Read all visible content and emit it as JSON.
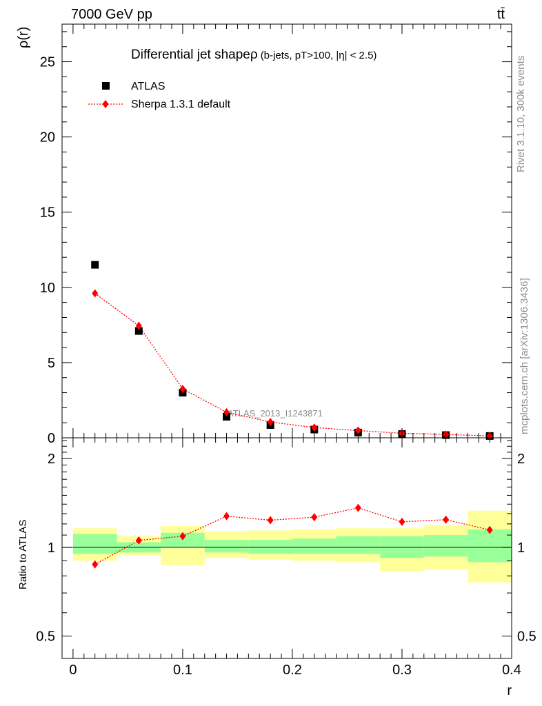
{
  "header": {
    "energy_label": "7000 GeV pp",
    "process_label": "tt̄"
  },
  "side_labels": {
    "rivet": "Rivet 3.1.10,  300k events",
    "mcplots": "mcplots.cern.ch [arXiv:1306.3436]"
  },
  "chart_data": [
    {
      "type": "scatter",
      "title": "Differential jet shapeρ",
      "subtitle": "(b-jets, pT>100, |η| < 2.5)",
      "xlabel": "",
      "ylabel": "ρ(r)",
      "xlim": [
        -0.01,
        0.4
      ],
      "ylim": [
        0,
        27.5
      ],
      "yticks": [
        0,
        5,
        10,
        15,
        20,
        25
      ],
      "xticks": [
        0,
        0.1,
        0.2,
        0.3,
        0.4
      ],
      "watermark": "ATLAS_2013_I1243871",
      "legend_position": "top-left",
      "series": [
        {
          "name": "ATLAS",
          "color": "#000000",
          "marker": "square",
          "x": [
            0.02,
            0.06,
            0.1,
            0.14,
            0.18,
            0.22,
            0.26,
            0.3,
            0.34,
            0.38
          ],
          "y": [
            11.5,
            7.1,
            3.0,
            1.4,
            0.85,
            0.55,
            0.35,
            0.25,
            0.18,
            0.12
          ]
        },
        {
          "name": "Sherpa 1.3.1 default",
          "color": "#ff0000",
          "marker": "diamond",
          "line": "dotted",
          "x": [
            0.02,
            0.06,
            0.1,
            0.14,
            0.18,
            0.22,
            0.26,
            0.3,
            0.34,
            0.38
          ],
          "y": [
            9.6,
            7.45,
            3.25,
            1.7,
            1.05,
            0.68,
            0.48,
            0.3,
            0.22,
            0.13
          ]
        }
      ]
    },
    {
      "type": "line",
      "xlabel": "r",
      "ylabel": "Ratio to ATLAS",
      "xlim": [
        -0.01,
        0.4
      ],
      "ylim": [
        0.42,
        2.35
      ],
      "yscale": "log",
      "yticks": [
        0.5,
        1,
        2
      ],
      "xticks": [
        0,
        0.1,
        0.2,
        0.3,
        0.4
      ],
      "xtick_labels": [
        "0",
        "0.1",
        "0.2",
        "0.3",
        "0.4"
      ],
      "bins": [
        [
          0,
          0.04
        ],
        [
          0.04,
          0.08
        ],
        [
          0.08,
          0.12
        ],
        [
          0.12,
          0.16
        ],
        [
          0.16,
          0.2
        ],
        [
          0.2,
          0.24
        ],
        [
          0.24,
          0.28
        ],
        [
          0.28,
          0.32
        ],
        [
          0.32,
          0.36
        ],
        [
          0.36,
          0.4
        ]
      ],
      "band_colors": {
        "stat": "#99ff99",
        "total": "#ffff99"
      },
      "stat_band": [
        [
          0.95,
          1.11
        ],
        [
          0.96,
          1.04
        ],
        [
          1.0,
          1.12
        ],
        [
          0.96,
          1.06
        ],
        [
          0.95,
          1.06
        ],
        [
          0.95,
          1.07
        ],
        [
          0.95,
          1.09
        ],
        [
          0.92,
          1.09
        ],
        [
          0.93,
          1.1
        ],
        [
          0.89,
          1.15
        ]
      ],
      "total_band": [
        [
          0.9,
          1.16
        ],
        [
          0.94,
          1.09
        ],
        [
          0.87,
          1.18
        ],
        [
          0.92,
          1.13
        ],
        [
          0.91,
          1.14
        ],
        [
          0.9,
          1.15
        ],
        [
          0.89,
          1.16
        ],
        [
          0.83,
          1.16
        ],
        [
          0.84,
          1.19
        ],
        [
          0.76,
          1.33
        ]
      ],
      "series": [
        {
          "name": "Sherpa 1.3.1 default",
          "color": "#ff0000",
          "x": [
            0.02,
            0.06,
            0.1,
            0.14,
            0.18,
            0.22,
            0.26,
            0.3,
            0.34,
            0.38
          ],
          "y": [
            0.875,
            1.055,
            1.09,
            1.275,
            1.235,
            1.265,
            1.36,
            1.22,
            1.24,
            1.145
          ]
        }
      ]
    }
  ]
}
